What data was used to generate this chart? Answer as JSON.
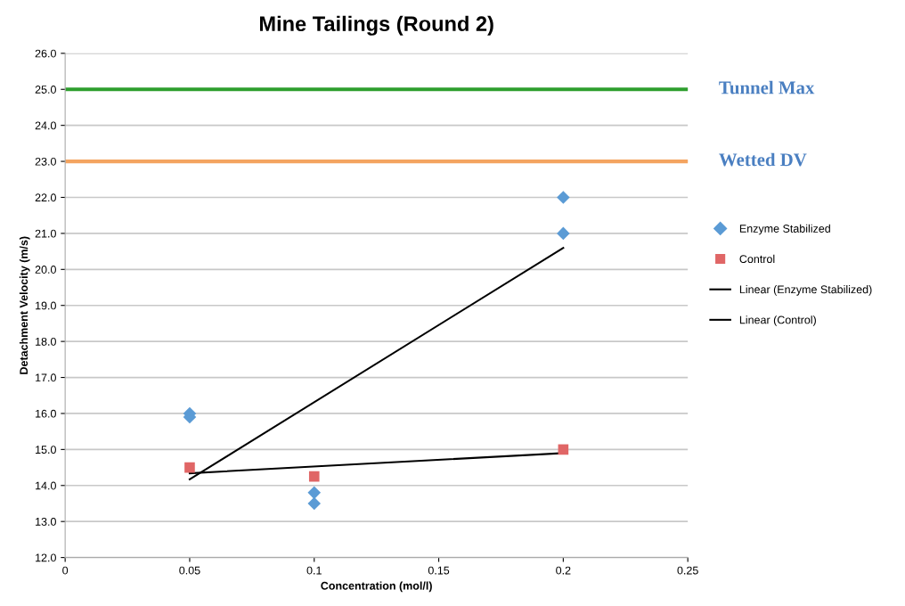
{
  "chart_data": {
    "type": "scatter",
    "title": "Mine Tailings (Round 2)",
    "xlabel": "Concentration (mol/l)",
    "ylabel": "Detachment Velocity (m/s)",
    "series": [
      {
        "name": "Enzyme Stabilized",
        "marker": "diamond",
        "color": "#5b9bd5",
        "x": [
          0.05,
          0.05,
          0.1,
          0.1,
          0.2,
          0.2
        ],
        "values": [
          16.0,
          15.9,
          13.8,
          13.5,
          22.0,
          21.0
        ]
      },
      {
        "name": "Control",
        "marker": "square",
        "color": "#e06666",
        "x": [
          0.05,
          0.1,
          0.2
        ],
        "values": [
          14.5,
          14.25,
          15.0
        ]
      },
      {
        "name": "Linear (Enzyme Stabilized)",
        "type": "line",
        "marker": "none",
        "color": "#000000",
        "x": [
          0.05,
          0.2
        ],
        "values": [
          14.17,
          20.6
        ]
      },
      {
        "name": "Linear (Control)",
        "type": "line",
        "marker": "none",
        "color": "#000000",
        "x": [
          0.05,
          0.2
        ],
        "values": [
          14.34,
          14.9
        ]
      }
    ],
    "ref_lines": [
      {
        "axis": "y",
        "value": 25,
        "label": "Tunnel Max",
        "color": "#2e9e2e"
      },
      {
        "axis": "y",
        "value": 23,
        "label": "Wetted DV",
        "color": "#f4a460"
      }
    ],
    "xlim": [
      0,
      0.25
    ],
    "xticks": [
      {
        "value": 0,
        "label": "0"
      },
      0.05,
      0.1,
      0.15,
      0.2,
      0.25
    ],
    "ylim": [
      12,
      26
    ],
    "yticks": [
      {
        "value": 12,
        "label": "12.0"
      },
      {
        "value": 13,
        "label": "13.0"
      },
      {
        "value": 14,
        "label": "14.0"
      },
      {
        "value": 15,
        "label": "15.0"
      },
      {
        "value": 16,
        "label": "16.0"
      },
      {
        "value": 17,
        "label": "17.0"
      },
      {
        "value": 18,
        "label": "18.0"
      },
      {
        "value": 19,
        "label": "19.0"
      },
      {
        "value": 20,
        "label": "20.0"
      },
      {
        "value": 21,
        "label": "21.0"
      },
      {
        "value": 22,
        "label": "22.0"
      },
      {
        "value": 23,
        "label": "23.0"
      },
      {
        "value": 24,
        "label": "24.0"
      },
      {
        "value": 25,
        "label": "25.0"
      },
      {
        "value": 26,
        "label": "26.0"
      }
    ],
    "grid": "y",
    "legend": "right"
  }
}
